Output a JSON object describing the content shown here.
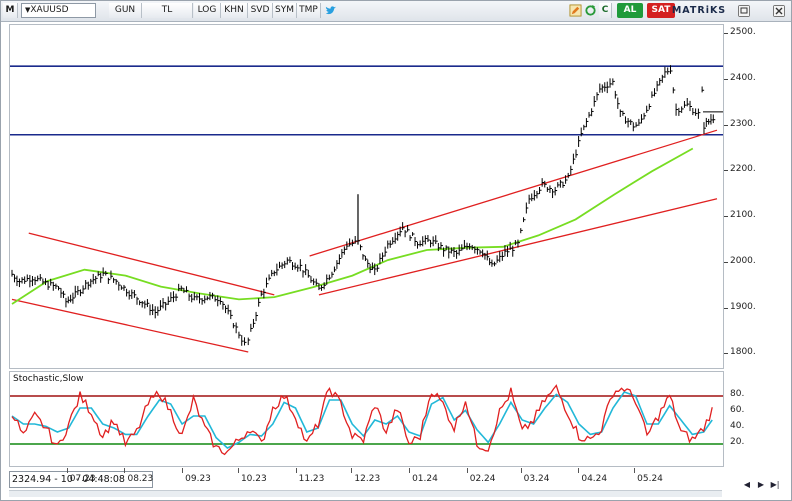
{
  "toolbar": {
    "menu_label": "M",
    "symbol": "XAUUSD",
    "buttons": [
      "GUN",
      "TL",
      "LOG",
      "KHN",
      "SVD",
      "SYM",
      "TMP"
    ],
    "al_label": "AL",
    "sat_label": "SAT",
    "c_label": "C",
    "brand": "MATRiKS"
  },
  "colors": {
    "price_bars": "#000000",
    "moving_average": "#77dd22",
    "channel_lines": "#e02020",
    "horizontal_levels": "#1a2a8c",
    "stoch_k": "#e02020",
    "stoch_d": "#22b8d8",
    "stoch_upper_band": "#a01010",
    "stoch_lower_band": "#118811"
  },
  "icons": {
    "menu": "m-menu-icon",
    "symbol_dropdown": "chevron-down-icon",
    "twitter": "twitter-bird-icon",
    "edit": "pencil-icon",
    "refresh": "refresh-icon",
    "window_restore": "window-restore-icon",
    "window_close": "close-icon"
  },
  "stochastic": {
    "title": "Stochastic,Slow",
    "upper_level": 80,
    "lower_level": 20
  },
  "readout": "2324.94 - 10 - 04:48:08",
  "chart_data": {
    "type": "line",
    "series_type": "ohlc-bars",
    "y_ticks": [
      1800,
      1900,
      2000,
      2100,
      2200,
      2300,
      2400,
      2500
    ],
    "ylim": [
      1770,
      2520
    ],
    "x_ticks": [
      "07.23",
      "08.23",
      "09.23",
      "10.23",
      "11.23",
      "12.23",
      "01.24",
      "02.24",
      "03.24",
      "04.24",
      "05.24"
    ],
    "price_series": [
      [
        "2023-06-01",
        1975
      ],
      [
        "2023-06-05",
        1960
      ],
      [
        "2023-06-12",
        1968
      ],
      [
        "2023-06-19",
        1955
      ],
      [
        "2023-06-26",
        1945
      ],
      [
        "2023-06-30",
        1915
      ],
      [
        "2023-07-05",
        1930
      ],
      [
        "2023-07-12",
        1958
      ],
      [
        "2023-07-20",
        1975
      ],
      [
        "2023-07-27",
        1960
      ],
      [
        "2023-08-03",
        1935
      ],
      [
        "2023-08-10",
        1915
      ],
      [
        "2023-08-17",
        1892
      ],
      [
        "2023-08-24",
        1915
      ],
      [
        "2023-08-31",
        1942
      ],
      [
        "2023-09-07",
        1920
      ],
      [
        "2023-09-14",
        1925
      ],
      [
        "2023-09-21",
        1922
      ],
      [
        "2023-09-28",
        1868
      ],
      [
        "2023-10-04",
        1822
      ],
      [
        "2023-10-06",
        1830
      ],
      [
        "2023-10-13",
        1930
      ],
      [
        "2023-10-20",
        1982
      ],
      [
        "2023-10-27",
        2005
      ],
      [
        "2023-11-03",
        1992
      ],
      [
        "2023-11-13",
        1942
      ],
      [
        "2023-11-20",
        1980
      ],
      [
        "2023-11-28",
        2040
      ],
      [
        "2023-12-04",
        2045
      ],
      [
        "2023-12-08",
        2005
      ],
      [
        "2023-12-13",
        1980
      ],
      [
        "2023-12-20",
        2040
      ],
      [
        "2023-12-28",
        2078
      ],
      [
        "2024-01-05",
        2045
      ],
      [
        "2024-01-12",
        2048
      ],
      [
        "2024-01-19",
        2030
      ],
      [
        "2024-01-26",
        2020
      ],
      [
        "2024-02-02",
        2040
      ],
      [
        "2024-02-09",
        2025
      ],
      [
        "2024-02-14",
        1992
      ],
      [
        "2024-02-21",
        2022
      ],
      [
        "2024-02-28",
        2040
      ],
      [
        "2024-03-05",
        2140
      ],
      [
        "2024-03-12",
        2170
      ],
      [
        "2024-03-19",
        2160
      ],
      [
        "2024-03-26",
        2185
      ],
      [
        "2024-04-02",
        2280
      ],
      [
        "2024-04-09",
        2350
      ],
      [
        "2024-04-12",
        2380
      ],
      [
        "2024-04-16",
        2390
      ],
      [
        "2024-04-19",
        2395
      ],
      [
        "2024-04-23",
        2325
      ],
      [
        "2024-04-30",
        2300
      ],
      [
        "2024-05-03",
        2302
      ],
      [
        "2024-05-10",
        2360
      ],
      [
        "2024-05-17",
        2415
      ],
      [
        "2024-05-20",
        2425
      ],
      [
        "2024-05-23",
        2335
      ],
      [
        "2024-05-29",
        2345
      ],
      [
        "2024-06-04",
        2325
      ],
      [
        "2024-06-06",
        2372
      ],
      [
        "2024-06-07",
        2300
      ],
      [
        "2024-06-12",
        2318
      ],
      [
        "2024-06-14",
        2325
      ]
    ],
    "ma_series": [
      [
        "2023-06-01",
        1910
      ],
      [
        "2023-06-20",
        1960
      ],
      [
        "2023-07-10",
        1985
      ],
      [
        "2023-08-01",
        1972
      ],
      [
        "2023-08-20",
        1948
      ],
      [
        "2023-09-10",
        1933
      ],
      [
        "2023-10-01",
        1920
      ],
      [
        "2023-10-20",
        1925
      ],
      [
        "2023-11-10",
        1947
      ],
      [
        "2023-12-01",
        1972
      ],
      [
        "2023-12-20",
        2006
      ],
      [
        "2024-01-10",
        2028
      ],
      [
        "2024-02-01",
        2033
      ],
      [
        "2024-02-20",
        2035
      ],
      [
        "2024-03-10",
        2060
      ],
      [
        "2024-03-30",
        2095
      ],
      [
        "2024-04-20",
        2150
      ],
      [
        "2024-05-10",
        2200
      ],
      [
        "2024-06-01",
        2250
      ]
    ],
    "horizontal_levels": [
      2430,
      2280
    ],
    "channels": [
      {
        "name": "upper-falling-top",
        "from": [
          "2023-06-10",
          2065
        ],
        "to": [
          "2023-10-20",
          1930
        ]
      },
      {
        "name": "upper-falling-bottom",
        "from": [
          "2023-06-01",
          1920
        ],
        "to": [
          "2023-10-06",
          1805
        ]
      },
      {
        "name": "rising-top",
        "from": [
          "2023-11-08",
          2015
        ],
        "to": [
          "2024-06-14",
          2290
        ]
      },
      {
        "name": "rising-bottom",
        "from": [
          "2023-11-13",
          1930
        ],
        "to": [
          "2024-06-14",
          2140
        ]
      }
    ],
    "stochastic_k": [
      60,
      30,
      55,
      40,
      15,
      45,
      80,
      60,
      30,
      50,
      20,
      35,
      70,
      85,
      60,
      30,
      75,
      40,
      15,
      10,
      25,
      40,
      20,
      65,
      80,
      55,
      20,
      45,
      90,
      70,
      30,
      25,
      70,
      35,
      65,
      20,
      30,
      88,
      70,
      40,
      75,
      20,
      15,
      60,
      85,
      35,
      50,
      75,
      90,
      60,
      30,
      25,
      40,
      85,
      90,
      75,
      30,
      55,
      80,
      35,
      25,
      40,
      70
    ],
    "stochastic_d": [
      55,
      45,
      45,
      42,
      35,
      40,
      65,
      65,
      45,
      40,
      32,
      32,
      55,
      75,
      70,
      45,
      55,
      55,
      28,
      15,
      22,
      32,
      30,
      45,
      72,
      65,
      35,
      40,
      75,
      75,
      45,
      30,
      50,
      45,
      55,
      35,
      30,
      70,
      78,
      50,
      62,
      38,
      22,
      45,
      72,
      50,
      45,
      65,
      82,
      72,
      45,
      32,
      35,
      65,
      85,
      80,
      45,
      45,
      68,
      50,
      32,
      35,
      55
    ]
  },
  "bottom": {
    "x_labels": [
      "07.23",
      "08.23",
      "09.23",
      "10.23",
      "11.23",
      "12.23",
      "01.24",
      "02.24",
      "03.24",
      "04.24",
      "05.24"
    ]
  }
}
